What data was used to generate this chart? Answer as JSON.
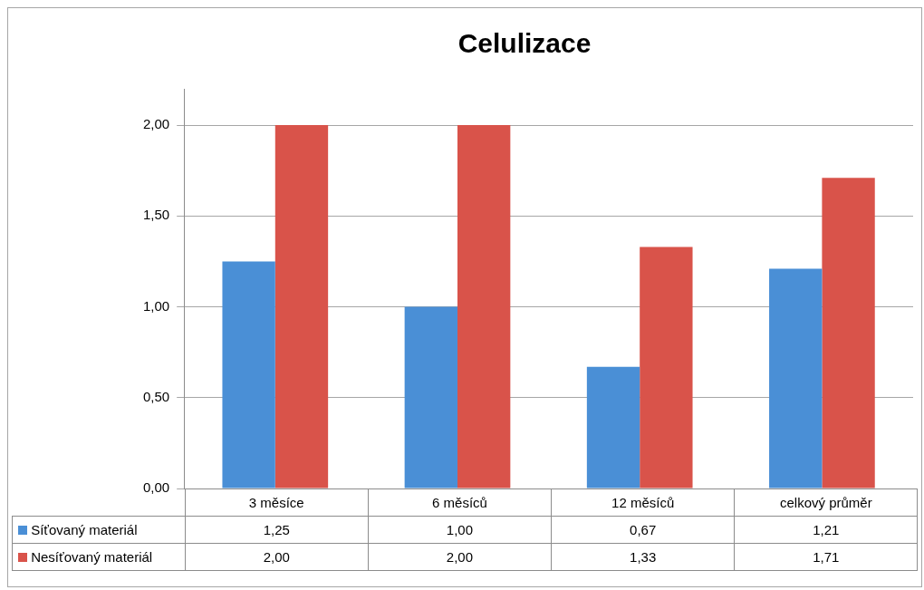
{
  "chart_data": {
    "type": "bar",
    "title": "Celulizace",
    "categories": [
      "3 měsíce",
      "6 měsíců",
      "12 měsíců",
      "celkový průměr"
    ],
    "series": [
      {
        "name": "Síťovaný materiál",
        "color": "#4a8fd6",
        "values": [
          1.25,
          1.0,
          0.67,
          1.21
        ],
        "value_labels": [
          "1,25",
          "1,00",
          "0,67",
          "1,21"
        ]
      },
      {
        "name": "Nesíťovaný materiál",
        "color": "#d9534a",
        "values": [
          2.0,
          2.0,
          1.33,
          1.71
        ],
        "value_labels": [
          "2,00",
          "2,00",
          "1,33",
          "1,71"
        ]
      }
    ],
    "ylim": [
      0,
      2.2
    ],
    "yticks": [
      {
        "value": 0,
        "label": "0,00"
      },
      {
        "value": 0.5,
        "label": "0,50"
      },
      {
        "value": 1,
        "label": "1,00"
      },
      {
        "value": 1.5,
        "label": "1,50"
      },
      {
        "value": 2,
        "label": "2,00"
      }
    ],
    "grid": "y",
    "legend": "bottom"
  }
}
